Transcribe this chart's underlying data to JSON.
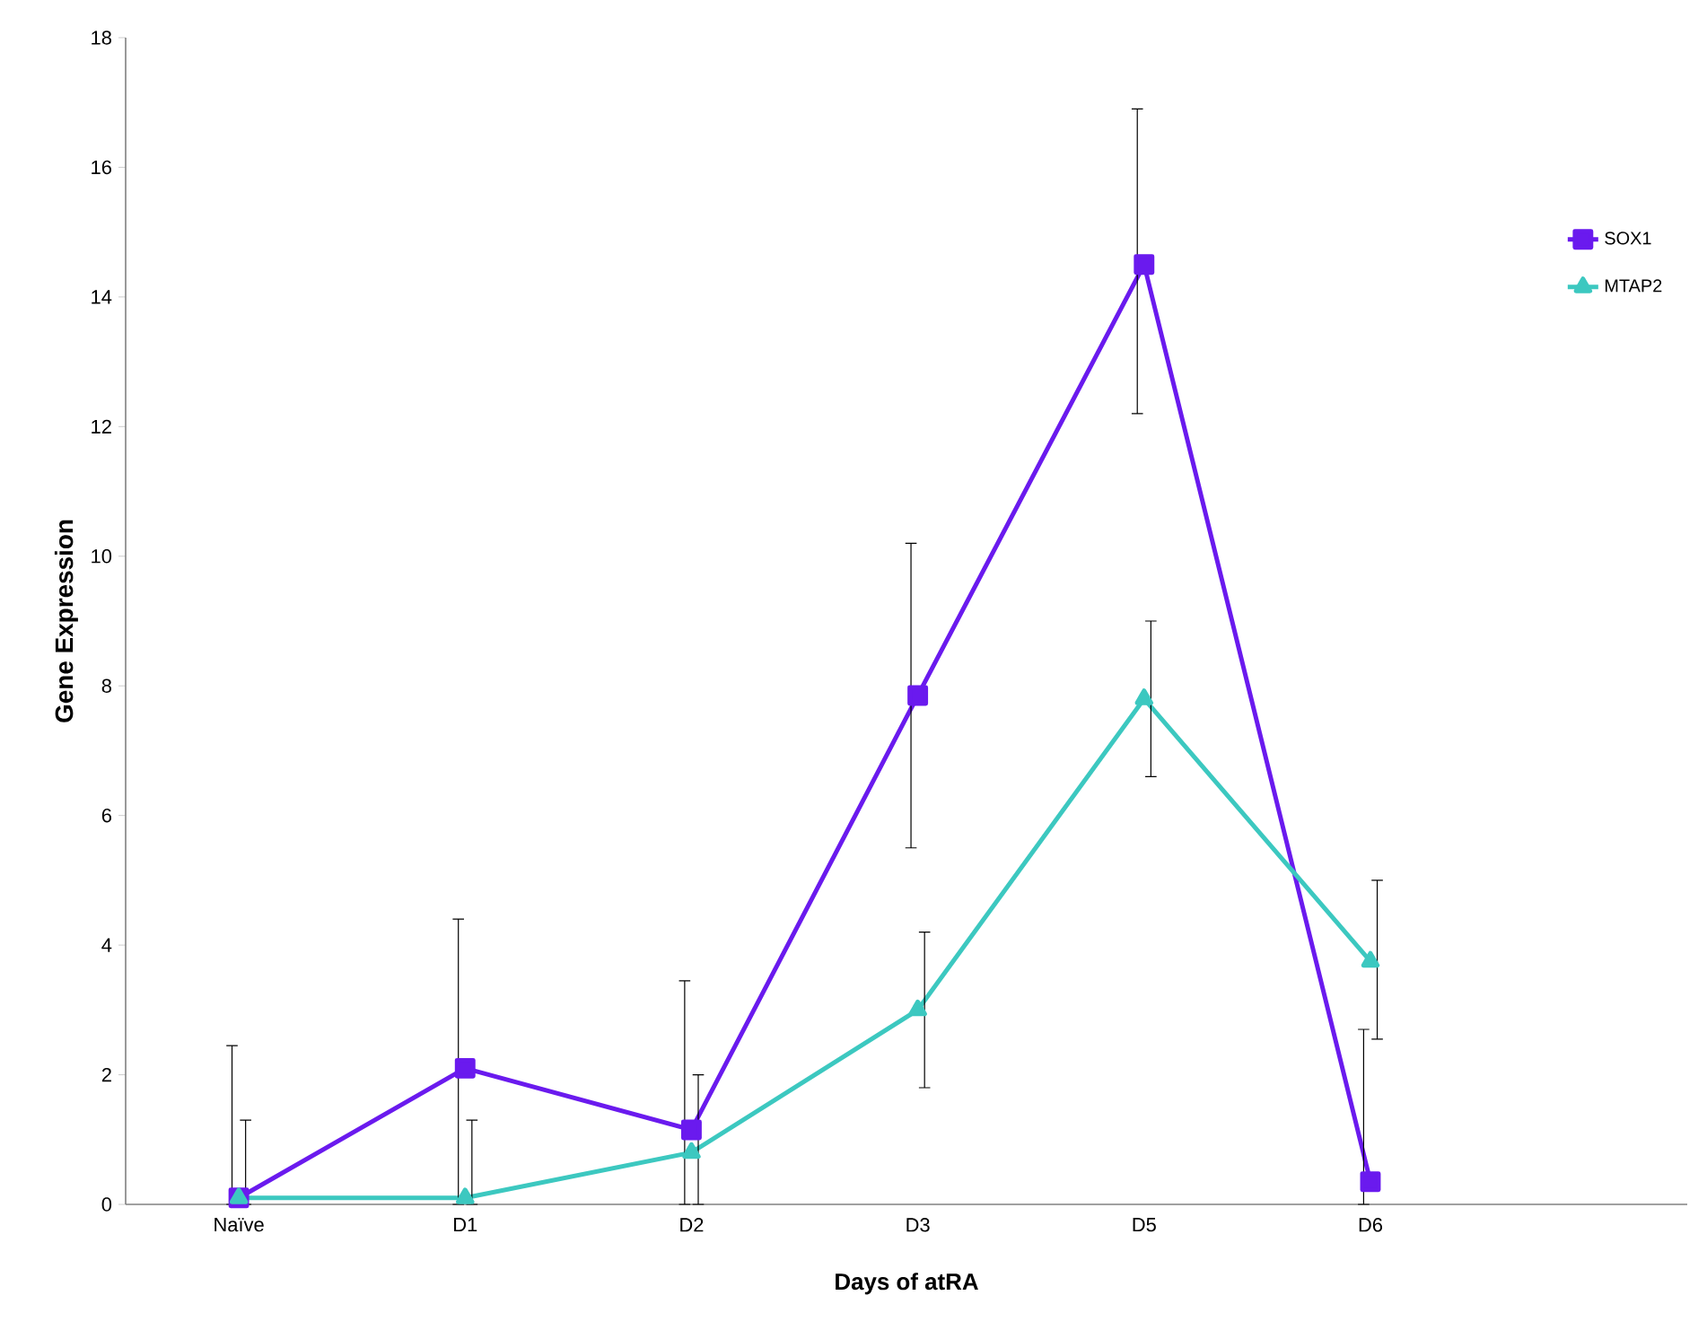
{
  "chart_data": {
    "type": "line",
    "xlabel": "Days of atRA",
    "ylabel": "Gene  Expression",
    "categories": [
      "Naïve",
      "D1",
      "D2",
      "D3",
      "D5",
      "D6"
    ],
    "series": [
      {
        "name": "SOX1",
        "color": "#6a1aee",
        "marker": "square",
        "values": [
          0.1,
          2.1,
          1.15,
          7.85,
          14.5,
          0.35
        ],
        "errors": [
          [
            0,
            2.45
          ],
          [
            0,
            4.4
          ],
          [
            0,
            3.45
          ],
          [
            5.5,
            10.2
          ],
          [
            12.2,
            16.9
          ],
          [
            0,
            2.7
          ]
        ]
      },
      {
        "name": "MTAP2",
        "color": "#3cc8c0",
        "marker": "triangle",
        "values": [
          0.1,
          0.1,
          0.8,
          3.0,
          7.8,
          3.75
        ],
        "errors": [
          [
            0,
            1.3
          ],
          [
            0,
            1.3
          ],
          [
            0,
            2.0
          ],
          [
            1.8,
            4.2
          ],
          [
            6.6,
            9.0
          ],
          [
            2.55,
            5.0
          ]
        ]
      }
    ],
    "ylim": [
      0,
      18
    ],
    "yticks": [
      0,
      2,
      4,
      6,
      8,
      10,
      12,
      14,
      16,
      18
    ],
    "legend": "top right",
    "grid": false,
    "line_style": "solid"
  }
}
